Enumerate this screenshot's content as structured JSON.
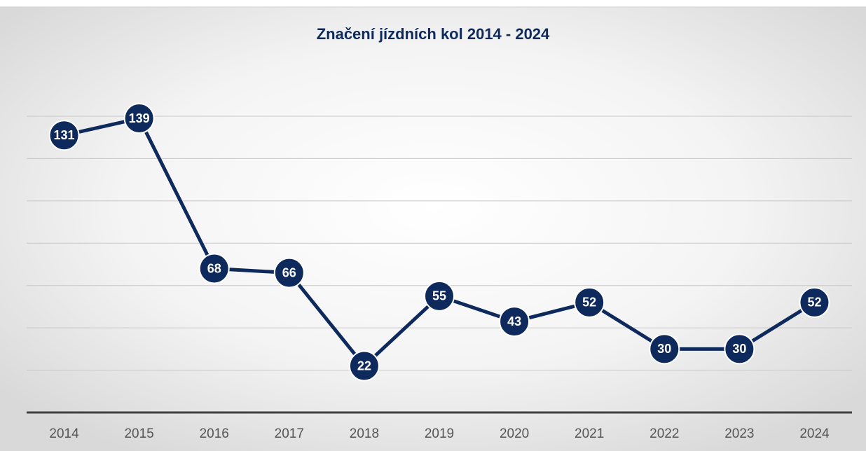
{
  "chart_data": {
    "type": "line",
    "title": "Značení jízdních kol 2014 - 2024",
    "categories": [
      "2014",
      "2015",
      "2016",
      "2017",
      "2018",
      "2019",
      "2020",
      "2021",
      "2022",
      "2023",
      "2024"
    ],
    "series": [
      {
        "name": "Značení jízdních kol",
        "color": "#0e2a5c",
        "values": [
          131,
          139,
          68,
          66,
          22,
          55,
          43,
          52,
          30,
          30,
          52
        ]
      }
    ],
    "ylim": [
      0,
      140
    ],
    "yticks": [
      0,
      20,
      40,
      60,
      80,
      100,
      120,
      140
    ],
    "grid": true
  }
}
